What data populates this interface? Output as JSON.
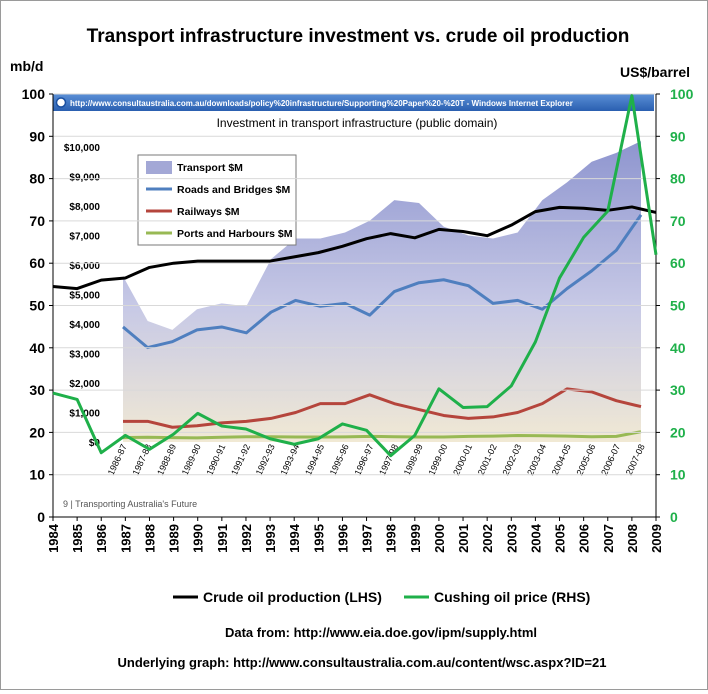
{
  "chart_data": {
    "type": "line",
    "title": "Transport infrastructure investment vs. crude oil production",
    "left_axis_unit": "mb/d",
    "right_axis_unit": "US$/barrel",
    "x_ticks": [
      "1984",
      "1985",
      "1986",
      "1987",
      "1988",
      "1989",
      "1990",
      "1991",
      "1992",
      "1993",
      "1994",
      "1995",
      "1996",
      "1997",
      "1998",
      "1999",
      "2000",
      "2001",
      "2002",
      "2003",
      "2004",
      "2005",
      "2006",
      "2007",
      "2008",
      "2009"
    ],
    "left_ticks": [
      0,
      10,
      20,
      30,
      40,
      50,
      60,
      70,
      80,
      90,
      100
    ],
    "right_ticks": [
      0,
      10,
      20,
      30,
      40,
      50,
      60,
      70,
      80,
      90,
      100
    ],
    "xlim": [
      1984,
      2009
    ],
    "ylim_left": [
      0,
      100
    ],
    "ylim_right": [
      0,
      100
    ],
    "grid": "horizontal",
    "legend_position": "bottom",
    "series": [
      {
        "name": "Crude oil production (LHS)",
        "axis": "left",
        "color": "#000000",
        "x": [
          1984,
          1985,
          1986,
          1987,
          1988,
          1989,
          1990,
          1991,
          1992,
          1993,
          1994,
          1995,
          1996,
          1997,
          1998,
          1999,
          2000,
          2001,
          2002,
          2003,
          2004,
          2005,
          2006,
          2007,
          2008,
          2009
        ],
        "values": [
          54.5,
          54,
          56,
          56.5,
          59,
          60,
          60.5,
          60.5,
          60.5,
          60.5,
          61.5,
          62.5,
          64,
          65.8,
          67,
          66,
          68,
          67.5,
          66.5,
          69,
          72.2,
          73.2,
          73,
          72.5,
          73.3,
          72
        ]
      },
      {
        "name": "Cushing oil price (RHS)",
        "axis": "right",
        "color": "#1fb04a",
        "x": [
          1984,
          1985,
          1986,
          1987,
          1988,
          1989,
          1990,
          1991,
          1992,
          1993,
          1994,
          1995,
          1996,
          1997,
          1998,
          1999,
          2000,
          2001,
          2002,
          2003,
          2004,
          2005,
          2006,
          2007,
          2008,
          2009
        ],
        "values": [
          29.3,
          27.8,
          15.2,
          19.3,
          16,
          19.6,
          24.5,
          21.5,
          20.8,
          18.5,
          17.2,
          18.5,
          22,
          20.5,
          14.5,
          19.3,
          30.3,
          25.9,
          26.1,
          31,
          41.4,
          56.5,
          66.1,
          72.3,
          99.6,
          62
        ]
      }
    ],
    "inset": {
      "window_caption": "http://www.consultaustralia.com.au/downloads/policy%20infrastructure/Supporting%20Paper%20-%20T - Windows Internet Explorer",
      "title": "Investment in transport infrastructure (public domain)",
      "y_ticks": [
        "$0",
        "$1,000",
        "$2,000",
        "$3,000",
        "$4,000",
        "$5,000",
        "$6,000",
        "$7,000",
        "$8,000",
        "$9,000",
        "$10,000"
      ],
      "x_ticks": [
        "1986-87",
        "1987-88",
        "1988-89",
        "1989-90",
        "1990-91",
        "1991-92",
        "1992-93",
        "1993-94",
        "1994-95",
        "1995-96",
        "1996-97",
        "1997-98",
        "1998-99",
        "1999-00",
        "2000-01",
        "2001-02",
        "2002-03",
        "2003-04",
        "2004-05",
        "2005-06",
        "2006-07",
        "2007-08"
      ],
      "ylim": [
        0,
        10000
      ],
      "footer": "9  |  Transporting Australia's Future",
      "series": [
        {
          "name": "Transport $M",
          "type": "area",
          "color": "#a3a8d6",
          "values": [
            5620,
            4100,
            3800,
            4500,
            4700,
            4600,
            6200,
            6900,
            6900,
            7100,
            7500,
            8200,
            8100,
            7300,
            7000,
            6900,
            7100,
            8200,
            8800,
            9500,
            9800,
            10200
          ]
        },
        {
          "name": "Roads and Bridges $M",
          "type": "line",
          "color": "#4f7fbf",
          "values": [
            3900,
            3200,
            3400,
            3800,
            3900,
            3700,
            4400,
            4800,
            4600,
            4700,
            4300,
            5100,
            5400,
            5500,
            5300,
            4700,
            4800,
            4500,
            5200,
            5800,
            6500,
            7700
          ]
        },
        {
          "name": "Railways $M",
          "type": "line",
          "color": "#b5453c",
          "values": [
            700,
            700,
            500,
            550,
            650,
            700,
            800,
            1000,
            1300,
            1300,
            1600,
            1300,
            1100,
            900,
            800,
            850,
            1000,
            1300,
            1800,
            1700,
            1400,
            1200
          ]
        },
        {
          "name": "Ports and Harbours $M",
          "type": "line",
          "color": "#98b954",
          "values": [
            150,
            160,
            150,
            140,
            160,
            180,
            180,
            170,
            170,
            175,
            190,
            180,
            170,
            170,
            190,
            200,
            220,
            210,
            200,
            180,
            190,
            350
          ]
        }
      ]
    },
    "notes": [
      "Data from: http://www.eia.doe.gov/ipm/supply.html",
      "Underlying graph: http://www.consultaustralia.com.au/content/wsc.aspx?ID=21"
    ]
  }
}
